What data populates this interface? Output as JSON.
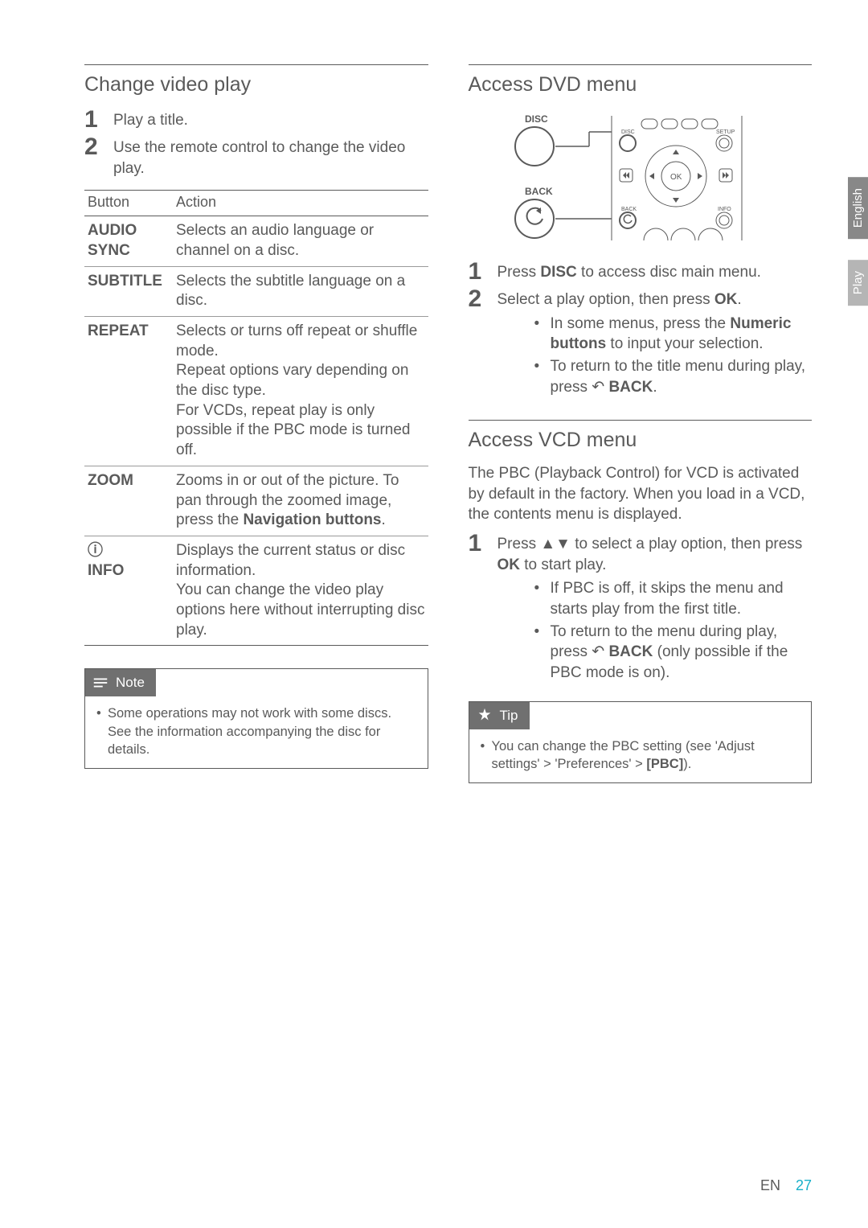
{
  "left": {
    "heading": "Change video play",
    "steps": [
      "Play a title.",
      "Use the remote control to change the video play."
    ],
    "table": {
      "headers": [
        "Button",
        "Action"
      ],
      "rows": [
        {
          "btn": "AUDIO SYNC",
          "action": "Selects an audio language or channel on a disc."
        },
        {
          "btn": "SUBTITLE",
          "action": "Selects the subtitle language on a disc."
        },
        {
          "btn": "REPEAT",
          "action_parts": [
            "Selects or turns off repeat or shuffle mode.",
            "Repeat options vary depending on the disc type.",
            "For VCDs, repeat play is only possible if the PBC mode is turned off."
          ]
        },
        {
          "btn": "ZOOM",
          "action_html": "Zooms in or out of the picture. To pan through the zoomed image, press the <b>Navigation buttons</b>."
        },
        {
          "btn": "ⓘ INFO",
          "action_parts": [
            "Displays the current status or disc information.",
            "You can change the video play options here without interrupting disc play."
          ]
        }
      ]
    },
    "note": {
      "label": "Note",
      "items": [
        "Some operations may not work with some discs. See the information accompanying the disc for details."
      ]
    }
  },
  "right": {
    "dvd": {
      "heading": "Access DVD menu",
      "diagram": {
        "labels": {
          "disc": "DISC",
          "back": "BACK",
          "ok": "OK"
        }
      },
      "steps": [
        {
          "text_html": "Press <b>DISC</b> to access disc main menu."
        },
        {
          "text_html": "Select a play option, then press <b>OK</b>.",
          "bullets_html": [
            "In some menus, press the <b>Numeric buttons</b> to input your selection.",
            "To return to the title menu during play, press ↶ <b>BACK</b>."
          ]
        }
      ]
    },
    "vcd": {
      "heading": "Access VCD menu",
      "intro": "The PBC (Playback Control) for VCD is activated by default in the factory. When you load in a VCD, the contents menu is displayed.",
      "steps": [
        {
          "text_html": "Press ▲▼ to select a play option, then press <b>OK</b> to start play.",
          "bullets_html": [
            "If PBC is off, it skips the menu and starts play from the first title.",
            "To return to the menu during play, press ↶ <b>BACK</b> (only possible if the PBC mode is on)."
          ]
        }
      ]
    },
    "tip": {
      "label": "Tip",
      "items_html": [
        "You can change the PBC setting (see 'Adjust settings' &gt; 'Preferences' &gt; <b>[PBC]</b>)."
      ]
    }
  },
  "side": {
    "top": "English",
    "bottom": "Play"
  },
  "footer": {
    "lang": "EN",
    "page": "27"
  },
  "colors": {
    "text": "#5a5a5a",
    "accent": "#18b0c9",
    "tab_bg": "#888888",
    "tab_bg_light": "#b5b5b5",
    "rule": "#5a5a5a"
  }
}
